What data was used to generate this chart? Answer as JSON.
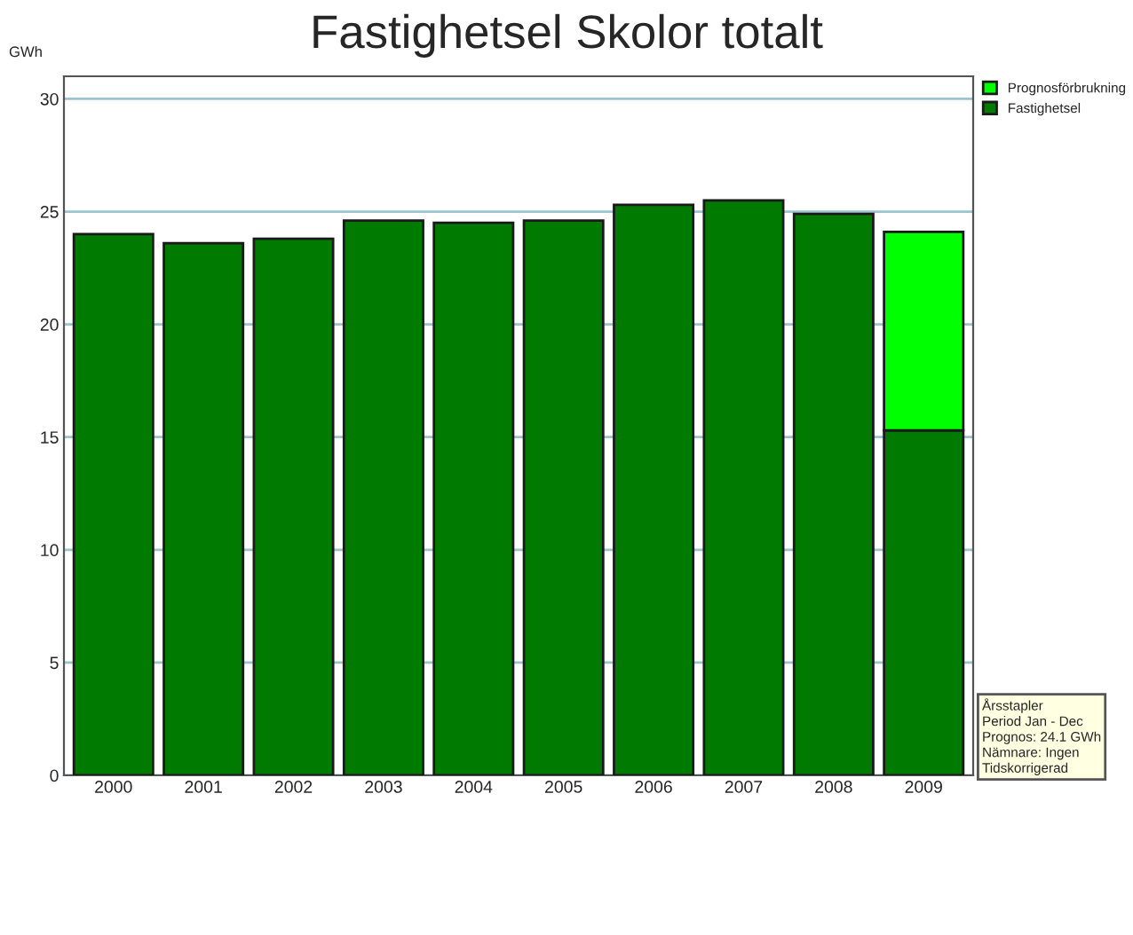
{
  "chart_data": {
    "type": "bar",
    "title": "Fastighetsel Skolor totalt",
    "ylabel": "GWh",
    "categories": [
      "2000",
      "2001",
      "2002",
      "2003",
      "2004",
      "2005",
      "2006",
      "2007",
      "2008",
      "2009"
    ],
    "stacked": true,
    "series": [
      {
        "name": "Fastighetsel",
        "color": "#007a00",
        "values": [
          24.0,
          23.6,
          23.8,
          24.6,
          24.5,
          24.6,
          25.3,
          25.5,
          24.9,
          15.3
        ]
      },
      {
        "name": "Prognosförbrukning",
        "color": "#00ff00",
        "values": [
          null,
          null,
          null,
          null,
          null,
          null,
          null,
          null,
          null,
          8.8
        ]
      }
    ],
    "ylim": [
      0,
      31
    ],
    "yticks": [
      0,
      5,
      10,
      15,
      20,
      25,
      30
    ],
    "grid": "y",
    "legend": "top right",
    "annotations": [
      "Årsstapler\nPeriod Jan - Dec\nPrognos: 24.1 GWh\nNämnare: Ingen\nTidskorrigerad"
    ]
  }
}
